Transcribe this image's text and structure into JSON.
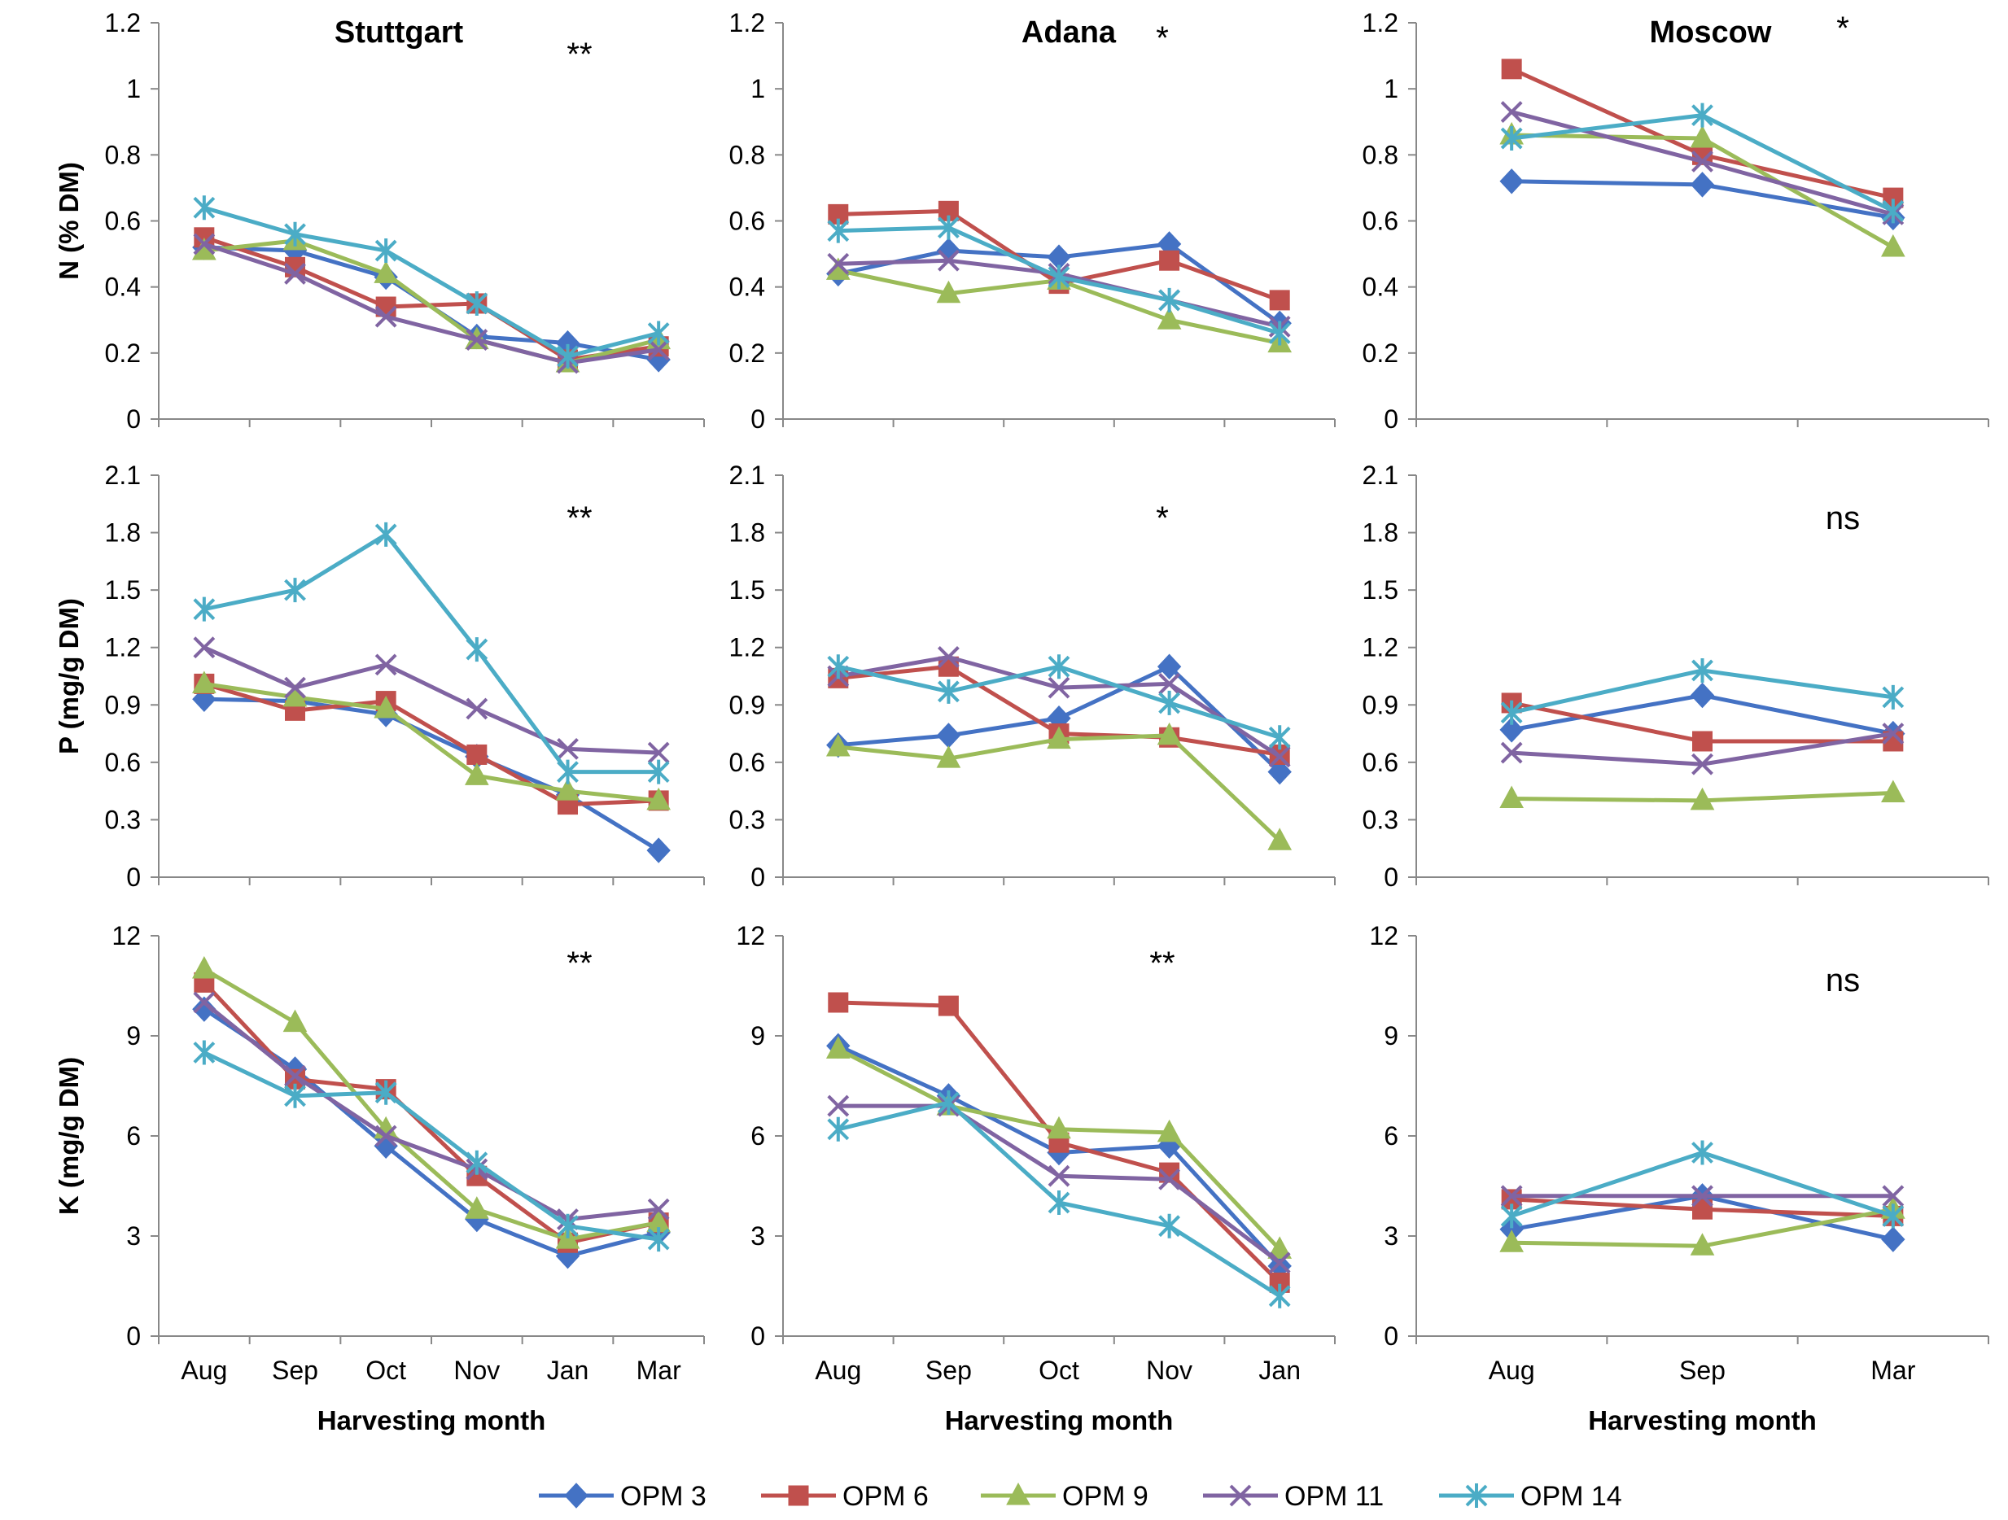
{
  "chart_data": {
    "type": "line",
    "colors": {
      "OPM 3": "#4472C4",
      "OPM 6": "#C0504D",
      "OPM 9": "#9BBB59",
      "OPM 11": "#8064A2",
      "OPM 14": "#4BACC6"
    },
    "legend": [
      {
        "name": "OPM 3",
        "marker": "diamond"
      },
      {
        "name": "OPM 6",
        "marker": "square"
      },
      {
        "name": "OPM 9",
        "marker": "triangle"
      },
      {
        "name": "OPM 11",
        "marker": "x"
      },
      {
        "name": "OPM 14",
        "marker": "star"
      }
    ],
    "xlabel": "Harvesting month",
    "columns": [
      {
        "title": "Stuttgart",
        "categories": [
          "Aug",
          "Sep",
          "Oct",
          "Nov",
          "Jan",
          "Mar"
        ]
      },
      {
        "title": "Adana",
        "categories": [
          "Aug",
          "Sep",
          "Oct",
          "Nov",
          "Jan"
        ]
      },
      {
        "title": "Moscow",
        "categories": [
          "Aug",
          "Sep",
          "Mar"
        ]
      }
    ],
    "rows": [
      {
        "ylabel": "N (% DM)",
        "ylim": [
          0,
          1.2
        ],
        "ticks": [
          "0",
          "0.2",
          "0.4",
          "0.6",
          "0.8",
          "1",
          "1.2"
        ]
      },
      {
        "ylabel": "P (mg/g DM)",
        "ylim": [
          0,
          2.1
        ],
        "ticks": [
          "0",
          "0.3",
          "0.6",
          "0.9",
          "1.2",
          "1.5",
          "1.8",
          "2.1"
        ]
      },
      {
        "ylabel": "K (mg/g DM)",
        "ylim": [
          0,
          12
        ],
        "ticks": [
          "0",
          "3",
          "6",
          "9",
          "12"
        ]
      }
    ],
    "panels": [
      {
        "row": 0,
        "col": 0,
        "significance": "**",
        "series": [
          {
            "name": "OPM 3",
            "values": [
              0.52,
              0.51,
              0.43,
              0.25,
              0.23,
              0.18
            ]
          },
          {
            "name": "OPM 6",
            "values": [
              0.55,
              0.46,
              0.34,
              0.35,
              0.18,
              0.22
            ]
          },
          {
            "name": "OPM 9",
            "values": [
              0.51,
              0.54,
              0.44,
              0.24,
              0.17,
              0.24
            ]
          },
          {
            "name": "OPM 11",
            "values": [
              0.53,
              0.44,
              0.31,
              0.24,
              0.17,
              0.21
            ]
          },
          {
            "name": "OPM 14",
            "values": [
              0.64,
              0.56,
              0.51,
              0.35,
              0.19,
              0.26
            ]
          }
        ]
      },
      {
        "row": 0,
        "col": 1,
        "significance": "*",
        "series": [
          {
            "name": "OPM 3",
            "values": [
              0.44,
              0.51,
              0.49,
              0.53,
              0.29
            ]
          },
          {
            "name": "OPM 6",
            "values": [
              0.62,
              0.63,
              0.41,
              0.48,
              0.36
            ]
          },
          {
            "name": "OPM 9",
            "values": [
              0.45,
              0.38,
              0.42,
              0.3,
              0.23
            ]
          },
          {
            "name": "OPM 11",
            "values": [
              0.47,
              0.48,
              0.44,
              0.36,
              0.28
            ]
          },
          {
            "name": "OPM 14",
            "values": [
              0.57,
              0.58,
              0.43,
              0.36,
              0.26
            ]
          }
        ]
      },
      {
        "row": 0,
        "col": 2,
        "significance": "*",
        "series": [
          {
            "name": "OPM 3",
            "values": [
              0.72,
              0.71,
              0.61
            ]
          },
          {
            "name": "OPM 6",
            "values": [
              1.06,
              0.8,
              0.67
            ]
          },
          {
            "name": "OPM 9",
            "values": [
              0.86,
              0.85,
              0.52
            ]
          },
          {
            "name": "OPM 11",
            "values": [
              0.93,
              0.78,
              0.62
            ]
          },
          {
            "name": "OPM 14",
            "values": [
              0.85,
              0.92,
              0.63
            ]
          }
        ]
      },
      {
        "row": 1,
        "col": 0,
        "significance": "**",
        "series": [
          {
            "name": "OPM 3",
            "values": [
              0.93,
              0.92,
              0.85,
              0.63,
              0.43,
              0.14
            ]
          },
          {
            "name": "OPM 6",
            "values": [
              1.01,
              0.87,
              0.92,
              0.64,
              0.38,
              0.4
            ]
          },
          {
            "name": "OPM 9",
            "values": [
              1.01,
              0.94,
              0.88,
              0.53,
              0.45,
              0.4
            ]
          },
          {
            "name": "OPM 11",
            "values": [
              1.2,
              0.99,
              1.11,
              0.88,
              0.67,
              0.65
            ]
          },
          {
            "name": "OPM 14",
            "values": [
              1.4,
              1.5,
              1.79,
              1.19,
              0.55,
              0.55
            ]
          }
        ]
      },
      {
        "row": 1,
        "col": 1,
        "significance": "*",
        "series": [
          {
            "name": "OPM 3",
            "values": [
              0.69,
              0.74,
              0.83,
              1.1,
              0.55
            ]
          },
          {
            "name": "OPM 6",
            "values": [
              1.04,
              1.1,
              0.75,
              0.73,
              0.64
            ]
          },
          {
            "name": "OPM 9",
            "values": [
              0.68,
              0.62,
              0.72,
              0.74,
              0.19
            ]
          },
          {
            "name": "OPM 11",
            "values": [
              1.05,
              1.15,
              0.99,
              1.01,
              0.63
            ]
          },
          {
            "name": "OPM 14",
            "values": [
              1.1,
              0.97,
              1.1,
              0.91,
              0.73
            ]
          }
        ]
      },
      {
        "row": 1,
        "col": 2,
        "significance": "ns",
        "series": [
          {
            "name": "OPM 3",
            "values": [
              0.77,
              0.95,
              0.75
            ]
          },
          {
            "name": "OPM 6",
            "values": [
              0.91,
              0.71,
              0.71
            ]
          },
          {
            "name": "OPM 9",
            "values": [
              0.41,
              0.4,
              0.44
            ]
          },
          {
            "name": "OPM 11",
            "values": [
              0.65,
              0.59,
              0.75
            ]
          },
          {
            "name": "OPM 14",
            "values": [
              0.86,
              1.08,
              0.94
            ]
          }
        ]
      },
      {
        "row": 2,
        "col": 0,
        "significance": "**",
        "series": [
          {
            "name": "OPM 3",
            "values": [
              9.8,
              8.0,
              5.7,
              3.5,
              2.4,
              3.1
            ]
          },
          {
            "name": "OPM 6",
            "values": [
              10.6,
              7.7,
              7.4,
              4.8,
              2.8,
              3.4
            ]
          },
          {
            "name": "OPM 9",
            "values": [
              11.0,
              9.4,
              6.2,
              3.8,
              2.9,
              3.4
            ]
          },
          {
            "name": "OPM 11",
            "values": [
              10.0,
              7.8,
              6.0,
              5.0,
              3.5,
              3.8
            ]
          },
          {
            "name": "OPM 14",
            "values": [
              8.5,
              7.2,
              7.3,
              5.2,
              3.3,
              2.9
            ]
          }
        ]
      },
      {
        "row": 2,
        "col": 1,
        "significance": "**",
        "series": [
          {
            "name": "OPM 3",
            "values": [
              8.7,
              7.2,
              5.5,
              5.7,
              2.1
            ]
          },
          {
            "name": "OPM 6",
            "values": [
              10.0,
              9.9,
              5.8,
              4.9,
              1.6
            ]
          },
          {
            "name": "OPM 9",
            "values": [
              8.6,
              6.9,
              6.2,
              6.1,
              2.6
            ]
          },
          {
            "name": "OPM 11",
            "values": [
              6.9,
              6.9,
              4.8,
              4.7,
              2.2
            ]
          },
          {
            "name": "OPM 14",
            "values": [
              6.2,
              7.0,
              4.0,
              3.3,
              1.2
            ]
          }
        ]
      },
      {
        "row": 2,
        "col": 2,
        "significance": "ns",
        "series": [
          {
            "name": "OPM 3",
            "values": [
              3.2,
              4.2,
              2.9
            ]
          },
          {
            "name": "OPM 6",
            "values": [
              4.1,
              3.8,
              3.6
            ]
          },
          {
            "name": "OPM 9",
            "values": [
              2.8,
              2.7,
              3.8
            ]
          },
          {
            "name": "OPM 11",
            "values": [
              4.2,
              4.2,
              4.2
            ]
          },
          {
            "name": "OPM 14",
            "values": [
              3.6,
              5.5,
              3.6
            ]
          }
        ]
      }
    ]
  }
}
